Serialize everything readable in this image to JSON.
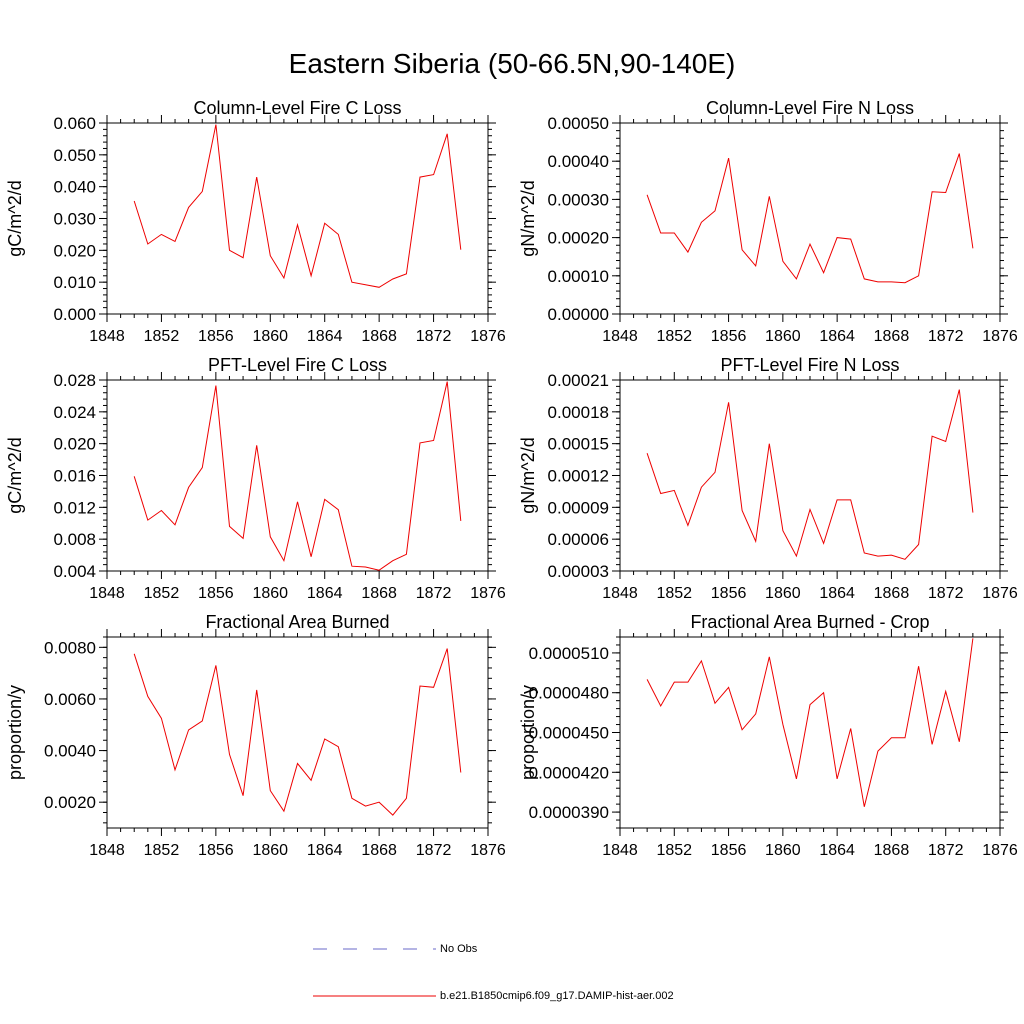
{
  "figure_title": "Eastern Siberia (50-66.5N,90-140E)",
  "legend": {
    "items": [
      {
        "label": "No Obs",
        "color": "#6a6ac8",
        "style": "dashed"
      },
      {
        "label": "b.e21.B1850cmip6.f09_g17.DAMIP-hist-aer.002",
        "color": "#ee0000",
        "style": "solid"
      }
    ]
  },
  "chart_data": [
    {
      "type": "line",
      "title": "Column-Level Fire C Loss",
      "ylabel": "gC/m^2/d",
      "xlim": [
        1848,
        1876
      ],
      "xticks": [
        1848,
        1852,
        1856,
        1860,
        1864,
        1868,
        1872,
        1876
      ],
      "ylim": [
        0,
        0.06
      ],
      "yticks": [
        "0.000",
        "0.010",
        "0.020",
        "0.030",
        "0.040",
        "0.050",
        "0.060"
      ],
      "yminor": 0.002,
      "x": [
        1850,
        1851,
        1852,
        1853,
        1854,
        1855,
        1856,
        1857,
        1858,
        1859,
        1860,
        1861,
        1862,
        1863,
        1864,
        1865,
        1866,
        1867,
        1868,
        1869,
        1870,
        1871,
        1872,
        1873,
        1874
      ],
      "series": [
        {
          "color": "#ee0000",
          "values": [
            0.0355,
            0.022,
            0.025,
            0.0228,
            0.0335,
            0.0385,
            0.0595,
            0.02,
            0.0177,
            0.043,
            0.0183,
            0.0113,
            0.028,
            0.012,
            0.0285,
            0.025,
            0.01,
            0.0092,
            0.0084,
            0.011,
            0.0126,
            0.043,
            0.0438,
            0.0566,
            0.0202
          ]
        }
      ]
    },
    {
      "type": "line",
      "title": "Column-Level Fire N Loss",
      "ylabel": "gN/m^2/d",
      "xlim": [
        1848,
        1876
      ],
      "xticks": [
        1848,
        1852,
        1856,
        1860,
        1864,
        1868,
        1872,
        1876
      ],
      "ylim": [
        0,
        0.0005
      ],
      "yticks": [
        "0.00000",
        "0.00010",
        "0.00020",
        "0.00030",
        "0.00040",
        "0.00050"
      ],
      "yminor": 2e-05,
      "x": [
        1850,
        1851,
        1852,
        1853,
        1854,
        1855,
        1856,
        1857,
        1858,
        1859,
        1860,
        1861,
        1862,
        1863,
        1864,
        1865,
        1866,
        1867,
        1868,
        1869,
        1870,
        1871,
        1872,
        1873,
        1874
      ],
      "series": [
        {
          "color": "#ee0000",
          "values": [
            0.000312,
            0.000212,
            0.000212,
            0.000162,
            0.00024,
            0.00027,
            0.000408,
            0.000168,
            0.000126,
            0.000308,
            0.000138,
            9.2e-05,
            0.000183,
            0.000108,
            0.0002,
            0.000196,
            9.2e-05,
            8.4e-05,
            8.4e-05,
            8.2e-05,
            0.0001,
            0.00032,
            0.000318,
            0.00042,
            0.000172
          ]
        }
      ]
    },
    {
      "type": "line",
      "title": "PFT-Level Fire C Loss",
      "ylabel": "gC/m^2/d",
      "xlim": [
        1848,
        1876
      ],
      "xticks": [
        1848,
        1852,
        1856,
        1860,
        1864,
        1868,
        1872,
        1876
      ],
      "ylim": [
        0.004,
        0.028
      ],
      "yticks": [
        "0.004",
        "0.008",
        "0.012",
        "0.016",
        "0.020",
        "0.024",
        "0.028"
      ],
      "yminor": 0.0008,
      "x": [
        1850,
        1851,
        1852,
        1853,
        1854,
        1855,
        1856,
        1857,
        1858,
        1859,
        1860,
        1861,
        1862,
        1863,
        1864,
        1865,
        1866,
        1867,
        1868,
        1869,
        1870,
        1871,
        1872,
        1873,
        1874
      ],
      "series": [
        {
          "color": "#ee0000",
          "values": [
            0.0159,
            0.0104,
            0.0116,
            0.0098,
            0.0145,
            0.017,
            0.0273,
            0.0096,
            0.0081,
            0.0198,
            0.0083,
            0.0053,
            0.0127,
            0.0058,
            0.013,
            0.0117,
            0.0046,
            0.0045,
            0.0041,
            0.0053,
            0.0061,
            0.0201,
            0.0204,
            0.0278,
            0.0103
          ]
        }
      ]
    },
    {
      "type": "line",
      "title": "PFT-Level Fire N Loss",
      "ylabel": "gN/m^2/d",
      "xlim": [
        1848,
        1876
      ],
      "xticks": [
        1848,
        1852,
        1856,
        1860,
        1864,
        1868,
        1872,
        1876
      ],
      "ylim": [
        3e-05,
        0.00021
      ],
      "yticks": [
        "0.00003",
        "0.00006",
        "0.00009",
        "0.00012",
        "0.00015",
        "0.00018",
        "0.00021"
      ],
      "yminor": 6e-06,
      "x": [
        1850,
        1851,
        1852,
        1853,
        1854,
        1855,
        1856,
        1857,
        1858,
        1859,
        1860,
        1861,
        1862,
        1863,
        1864,
        1865,
        1866,
        1867,
        1868,
        1869,
        1870,
        1871,
        1872,
        1873,
        1874
      ],
      "series": [
        {
          "color": "#ee0000",
          "values": [
            0.000141,
            0.000103,
            0.000106,
            7.3e-05,
            0.000109,
            0.000123,
            0.000189,
            8.7e-05,
            5.8e-05,
            0.00015,
            6.8e-05,
            4.4e-05,
            8.8e-05,
            5.6e-05,
            9.7e-05,
            9.7e-05,
            4.7e-05,
            4.4e-05,
            4.5e-05,
            4.1e-05,
            5.5e-05,
            0.000157,
            0.000152,
            0.000201,
            8.5e-05
          ]
        }
      ]
    },
    {
      "type": "line",
      "title": "Fractional Area Burned",
      "ylabel": "proportion/y",
      "xlim": [
        1848,
        1876
      ],
      "xticks": [
        1848,
        1852,
        1856,
        1860,
        1864,
        1868,
        1872,
        1876
      ],
      "ylim": [
        0.001,
        0.0084
      ],
      "yticks": [
        "0.0020",
        "0.0040",
        "0.0060",
        "0.0080"
      ],
      "ytick_values": [
        0.002,
        0.004,
        0.006,
        0.008
      ],
      "yminor": 0.0004,
      "x": [
        1850,
        1851,
        1852,
        1853,
        1854,
        1855,
        1856,
        1857,
        1858,
        1859,
        1860,
        1861,
        1862,
        1863,
        1864,
        1865,
        1866,
        1867,
        1868,
        1869,
        1870,
        1871,
        1872,
        1873,
        1874
      ],
      "series": [
        {
          "color": "#ee0000",
          "values": [
            0.00775,
            0.0061,
            0.00525,
            0.00325,
            0.0048,
            0.00515,
            0.0073,
            0.00385,
            0.00225,
            0.00635,
            0.00245,
            0.00165,
            0.0035,
            0.00285,
            0.00445,
            0.00415,
            0.00215,
            0.00185,
            0.002,
            0.0015,
            0.00215,
            0.0065,
            0.00645,
            0.00795,
            0.00315
          ]
        }
      ]
    },
    {
      "type": "line",
      "title": "Fractional Area Burned - Crop",
      "ylabel": "proportion/y",
      "xlim": [
        1848,
        1876
      ],
      "xticks": [
        1848,
        1852,
        1856,
        1860,
        1864,
        1868,
        1872,
        1876
      ],
      "ylim": [
        3.78e-05,
        5.22e-05
      ],
      "yticks": [
        "0.0000390",
        "0.0000420",
        "0.0000450",
        "0.0000480",
        "0.0000510"
      ],
      "ytick_values": [
        3.9e-05,
        4.2e-05,
        4.5e-05,
        4.8e-05,
        5.1e-05
      ],
      "yminor": 6e-07,
      "x": [
        1850,
        1851,
        1852,
        1853,
        1854,
        1855,
        1856,
        1857,
        1858,
        1859,
        1860,
        1861,
        1862,
        1863,
        1864,
        1865,
        1866,
        1867,
        1868,
        1869,
        1870,
        1871,
        1872,
        1873,
        1874
      ],
      "series": [
        {
          "color": "#ee0000",
          "values": [
            4.9e-05,
            4.7e-05,
            4.88e-05,
            4.88e-05,
            5.04e-05,
            4.72e-05,
            4.84e-05,
            4.52e-05,
            4.64e-05,
            5.07e-05,
            4.56e-05,
            4.15e-05,
            4.71e-05,
            4.8e-05,
            4.15e-05,
            4.53e-05,
            3.94e-05,
            4.36e-05,
            4.46e-05,
            4.46e-05,
            5e-05,
            4.41e-05,
            4.81e-05,
            4.43e-05,
            5.21e-05
          ]
        }
      ]
    }
  ]
}
